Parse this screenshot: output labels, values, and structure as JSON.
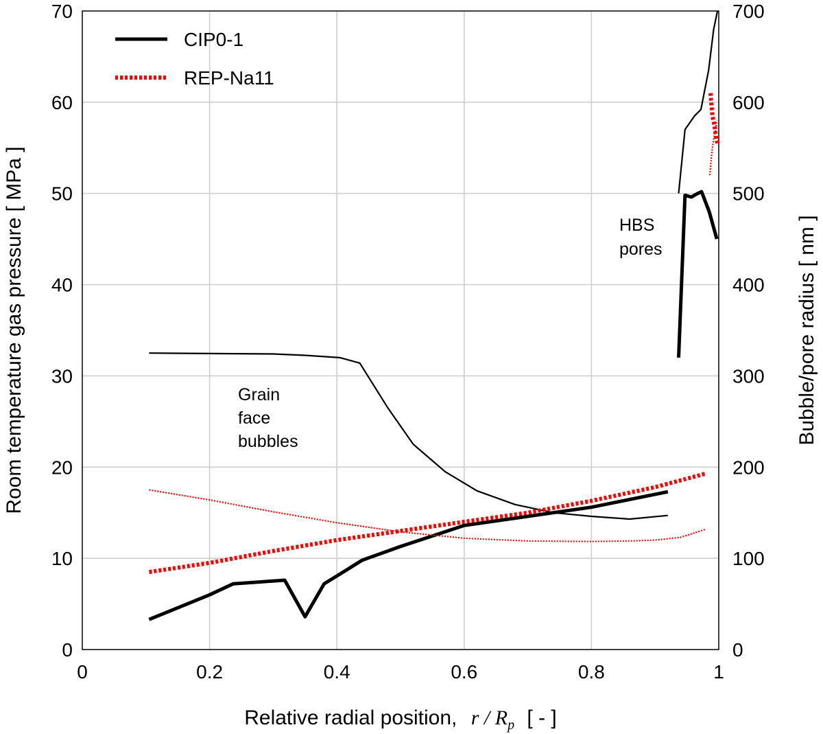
{
  "chart_data": {
    "type": "line",
    "xlabel": "Relative radial position,",
    "xlabel_symbol": "r / R",
    "xlabel_subscript": "p",
    "xlabel_unit": "[ - ]",
    "ylabel_left": "Room temperature gas pressure [ MPa ]",
    "ylabel_right": "Bubble/pore radius [ nm ]",
    "xlim": [
      0,
      1
    ],
    "ylim_left": [
      0,
      70
    ],
    "ylim_right": [
      0,
      700
    ],
    "x_ticks": [
      "0",
      "0.2",
      "0.4",
      "0.6",
      "0.8",
      "1"
    ],
    "y_ticks_left": [
      "0",
      "10",
      "20",
      "30",
      "40",
      "50",
      "60",
      "70"
    ],
    "y_ticks_right": [
      "0",
      "100",
      "200",
      "300",
      "400",
      "500",
      "600",
      "700"
    ],
    "grid": true,
    "legend_position": "top-left",
    "legend": [
      {
        "label": "CIP0-1",
        "color": "#000000",
        "style": "solid"
      },
      {
        "label": "REP-Na11",
        "color": "#ff0000",
        "style": "dotted"
      }
    ],
    "annotations": {
      "grain": [
        "Grain",
        "face",
        "bubbles"
      ],
      "hbs": [
        "HBS",
        "pores"
      ]
    },
    "series": [
      {
        "name": "CIP0-1",
        "quantity": "pressure",
        "axis": "left",
        "color": "#000000",
        "style": "solid",
        "x": [
          0.105,
          0.2,
          0.237,
          0.318,
          0.35,
          0.38,
          0.44,
          0.5,
          0.6,
          0.7,
          0.8,
          0.92
        ],
        "y": [
          3.3,
          6.0,
          7.2,
          7.6,
          3.6,
          7.2,
          9.8,
          11.3,
          13.6,
          14.6,
          15.6,
          17.3
        ]
      },
      {
        "name": "CIP0-1",
        "quantity": "radius",
        "axis": "right",
        "color": "#000000",
        "style": "solid",
        "x": [
          0.105,
          0.2,
          0.3,
          0.35,
          0.405,
          0.436,
          0.48,
          0.52,
          0.57,
          0.62,
          0.68,
          0.74,
          0.8,
          0.86,
          0.92
        ],
        "y": [
          325,
          324.5,
          324,
          322.5,
          320,
          314,
          265,
          225,
          195,
          174,
          159,
          150,
          146,
          143,
          147
        ]
      },
      {
        "name": "REP-Na11",
        "quantity": "pressure",
        "axis": "left",
        "color": "#ff0000",
        "style": "dotted",
        "x": [
          0.105,
          0.2,
          0.3,
          0.4,
          0.5,
          0.6,
          0.7,
          0.8,
          0.9,
          0.98
        ],
        "y": [
          8.5,
          9.5,
          10.8,
          12.0,
          13.0,
          14.0,
          15.0,
          16.3,
          17.8,
          19.3
        ]
      },
      {
        "name": "REP-Na11",
        "quantity": "radius",
        "axis": "right",
        "color": "#ff0000",
        "style": "dotted",
        "x": [
          0.105,
          0.2,
          0.3,
          0.4,
          0.5,
          0.6,
          0.7,
          0.8,
          0.86,
          0.9,
          0.94,
          0.98
        ],
        "y": [
          175,
          164,
          151,
          139,
          129,
          122,
          119,
          118.5,
          119,
          120,
          123,
          132
        ]
      },
      {
        "name": "CIP0-1 HBS",
        "quantity": "pressure",
        "axis": "left",
        "color": "#000000",
        "style": "solid",
        "x": [
          0.937,
          0.947,
          0.957,
          0.967,
          0.973,
          0.985,
          0.997
        ],
        "y": [
          32.0,
          49.8,
          49.6,
          50.0,
          50.2,
          48.0,
          45.0
        ]
      },
      {
        "name": "CIP0-1 HBS",
        "quantity": "radius",
        "axis": "right",
        "color": "#000000",
        "style": "solid",
        "x": [
          0.937,
          0.947,
          0.962,
          0.972,
          0.984,
          0.992,
          0.998
        ],
        "y": [
          500,
          570,
          585,
          592,
          635,
          680,
          700
        ]
      },
      {
        "name": "REP-Na11 HBS",
        "quantity": "pressure",
        "axis": "left",
        "color": "#ff0000",
        "style": "dotted",
        "x": [
          0.987,
          0.99,
          0.993,
          0.996,
          0.998
        ],
        "y": [
          61.0,
          58.5,
          57.5,
          56.0,
          55.5
        ]
      },
      {
        "name": "REP-Na11 HBS",
        "quantity": "radius",
        "axis": "right",
        "color": "#ff0000",
        "style": "dotted",
        "x": [
          0.986,
          0.989,
          0.992,
          0.995,
          0.997
        ],
        "y": [
          520,
          545,
          560,
          570,
          580
        ]
      }
    ]
  }
}
